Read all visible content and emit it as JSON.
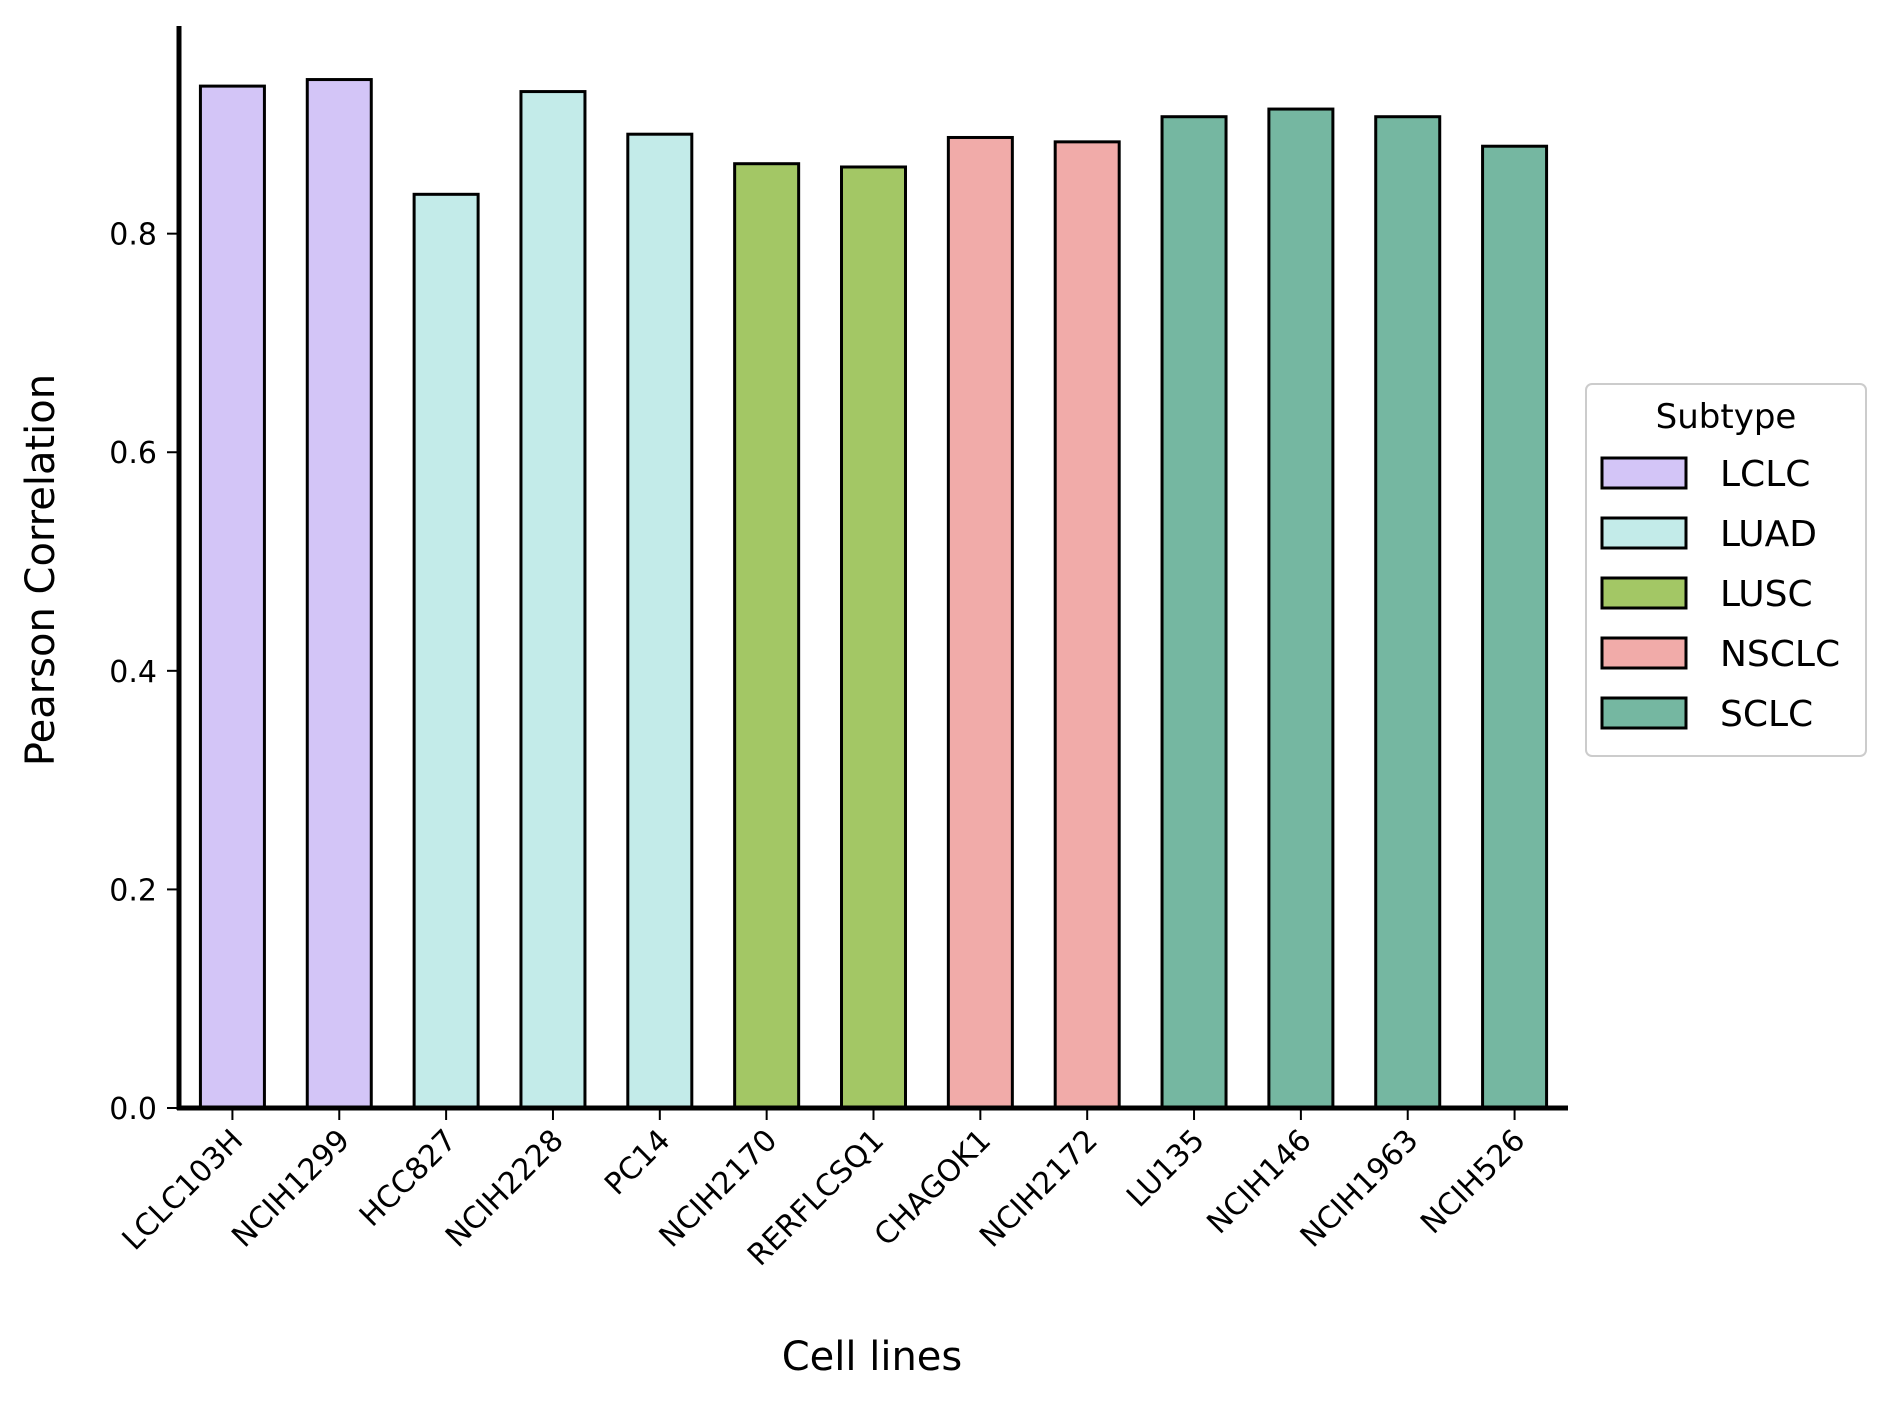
{
  "chart_data": {
    "type": "bar",
    "xlabel": "Cell lines",
    "ylabel": "Pearson Correlation",
    "ylim": [
      0,
      0.99
    ],
    "yticks": [
      {
        "value": 0.0,
        "label": "0.0"
      },
      {
        "value": 0.2,
        "label": "0.2"
      },
      {
        "value": 0.4,
        "label": "0.4"
      },
      {
        "value": 0.6,
        "label": "0.6"
      },
      {
        "value": 0.8,
        "label": "0.8"
      }
    ],
    "grid": false,
    "legend": {
      "title": "Subtype",
      "position": "right",
      "entries": [
        {
          "label": "LCLC",
          "color": "#d3c5f7"
        },
        {
          "label": "LUAD",
          "color": "#c3ebe9"
        },
        {
          "label": "LUSC",
          "color": "#a3c765"
        },
        {
          "label": "NSCLC",
          "color": "#f1aba9"
        },
        {
          "label": "SCLC",
          "color": "#75b7a1"
        }
      ]
    },
    "categories": [
      "LCLC103H",
      "NCIH1299",
      "HCC827",
      "NCIH2228",
      "PC14",
      "NCIH2170",
      "RERFLCSQ1",
      "CHAGOK1",
      "NCIH2172",
      "LU135",
      "NCIH146",
      "NCIH1963",
      "NCIH526"
    ],
    "subtypes": [
      "LCLC",
      "LCLC",
      "LUAD",
      "LUAD",
      "LUAD",
      "LUSC",
      "LUSC",
      "NSCLC",
      "NSCLC",
      "SCLC",
      "SCLC",
      "SCLC",
      "SCLC"
    ],
    "values": [
      0.935,
      0.941,
      0.836,
      0.93,
      0.891,
      0.864,
      0.861,
      0.888,
      0.884,
      0.907,
      0.914,
      0.907,
      0.88
    ]
  }
}
